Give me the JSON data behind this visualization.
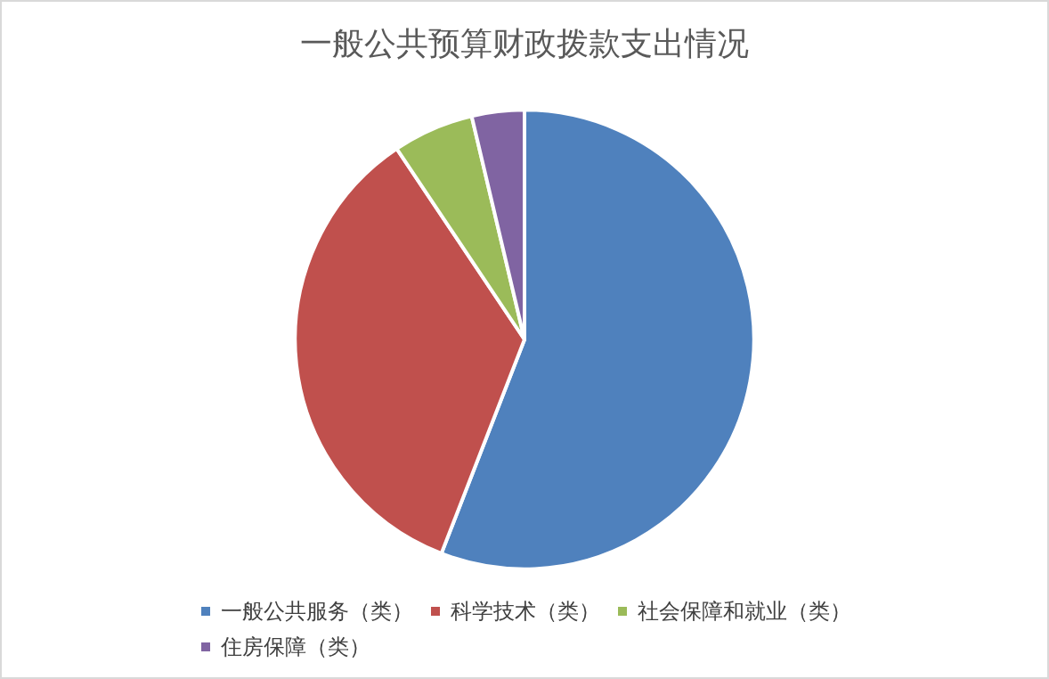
{
  "chart_data": {
    "type": "pie",
    "title": "一般公共预算财政拨款支出情况",
    "categories": [
      "一般公共服务（类）",
      "科学技术（类）",
      "社会保障和就业（类）",
      "住房保障（类）"
    ],
    "values": [
      55.9,
      34.7,
      5.7,
      3.7
    ],
    "colors": [
      "#4f81bd",
      "#c0504d",
      "#9bbb59",
      "#8064a2"
    ],
    "legend": "bottom"
  }
}
